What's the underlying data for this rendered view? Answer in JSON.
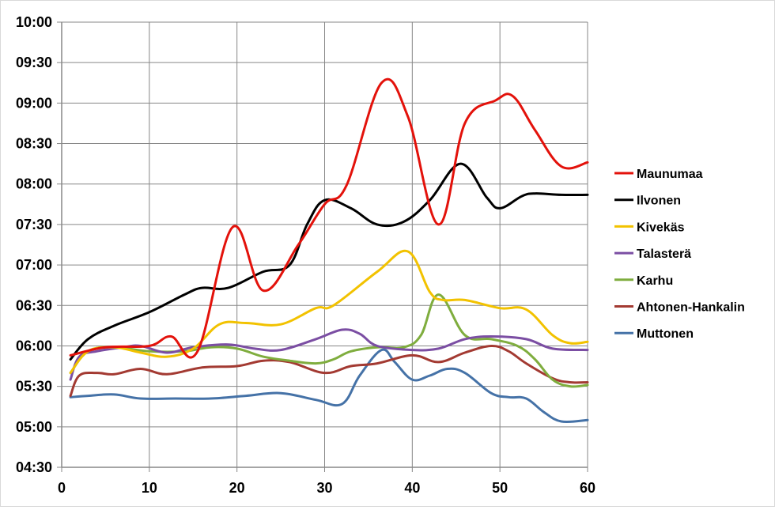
{
  "chart_data": {
    "type": "line",
    "title": "",
    "xlabel": "",
    "ylabel": "",
    "xlim": [
      0,
      60
    ],
    "ylim": [
      "04:30",
      "10:00"
    ],
    "x_ticks": [
      "0",
      "10",
      "20",
      "30",
      "40",
      "50",
      "60"
    ],
    "y_ticks": [
      "10:00",
      "09:30",
      "09:00",
      "08:30",
      "08:00",
      "07:30",
      "07:00",
      "06:30",
      "06:00",
      "05:30",
      "05:00",
      "04:30"
    ],
    "grid": true,
    "legend_position": "right",
    "series": [
      {
        "name": "Maunumaa",
        "color": "#e3120b",
        "points": [
          [
            1,
            "05:53"
          ],
          [
            5,
            "05:59"
          ],
          [
            10,
            "06:00"
          ],
          [
            12.5,
            "06:07"
          ],
          [
            15.5,
            "05:56"
          ],
          [
            19.5,
            "07:28"
          ],
          [
            23,
            "06:41"
          ],
          [
            27,
            "07:15"
          ],
          [
            30,
            "07:45"
          ],
          [
            32.5,
            "07:59"
          ],
          [
            36.5,
            "09:15"
          ],
          [
            39.5,
            "08:50"
          ],
          [
            43,
            "07:30"
          ],
          [
            46,
            "08:45"
          ],
          [
            49.5,
            "09:02"
          ],
          [
            51.5,
            "09:05"
          ],
          [
            54,
            "08:40"
          ],
          [
            57,
            "08:13"
          ],
          [
            60,
            "08:16"
          ]
        ]
      },
      {
        "name": "Ilvonen",
        "color": "#000000",
        "points": [
          [
            1,
            "05:50"
          ],
          [
            3,
            "06:05"
          ],
          [
            6,
            "06:15"
          ],
          [
            10,
            "06:25"
          ],
          [
            14,
            "06:38"
          ],
          [
            16,
            "06:43"
          ],
          [
            19,
            "06:43"
          ],
          [
            23,
            "06:55"
          ],
          [
            26,
            "07:00"
          ],
          [
            28,
            "07:30"
          ],
          [
            30,
            "07:48"
          ],
          [
            33,
            "07:42"
          ],
          [
            36,
            "07:30"
          ],
          [
            39,
            "07:32"
          ],
          [
            42,
            "07:48"
          ],
          [
            45.5,
            "08:15"
          ],
          [
            48.5,
            "07:50"
          ],
          [
            50,
            "07:42"
          ],
          [
            52.5,
            "07:51"
          ],
          [
            54,
            "07:53"
          ],
          [
            57,
            "07:52"
          ],
          [
            60,
            "07:52"
          ]
        ]
      },
      {
        "name": "Kivekäs",
        "color": "#f2c200",
        "points": [
          [
            1,
            "05:40"
          ],
          [
            3,
            "05:56"
          ],
          [
            6,
            "05:59"
          ],
          [
            9,
            "05:55"
          ],
          [
            12,
            "05:52"
          ],
          [
            15,
            "05:58"
          ],
          [
            18,
            "06:16"
          ],
          [
            21,
            "06:17"
          ],
          [
            25,
            "06:16"
          ],
          [
            29,
            "06:28"
          ],
          [
            31,
            "06:30"
          ],
          [
            36,
            "06:55"
          ],
          [
            39.5,
            "07:10"
          ],
          [
            42,
            "06:40"
          ],
          [
            43.5,
            "06:34"
          ],
          [
            46,
            "06:34"
          ],
          [
            50,
            "06:28"
          ],
          [
            53,
            "06:27"
          ],
          [
            56,
            "06:08"
          ],
          [
            58,
            "06:02"
          ],
          [
            60,
            "06:03"
          ]
        ]
      },
      {
        "name": "Talasterä",
        "color": "#7b4ea3",
        "points": [
          [
            1,
            "05:35"
          ],
          [
            2,
            "05:52"
          ],
          [
            4,
            "05:56"
          ],
          [
            7,
            "05:59"
          ],
          [
            9,
            "06:00"
          ],
          [
            12,
            "05:55"
          ],
          [
            15,
            "05:59"
          ],
          [
            19,
            "06:01"
          ],
          [
            22,
            "05:58"
          ],
          [
            25,
            "05:57"
          ],
          [
            29,
            "06:05"
          ],
          [
            32,
            "06:12"
          ],
          [
            34,
            "06:09"
          ],
          [
            36,
            "06:00"
          ],
          [
            40,
            "05:57"
          ],
          [
            43,
            "05:58"
          ],
          [
            46,
            "06:05"
          ],
          [
            49,
            "06:07"
          ],
          [
            53,
            "06:05"
          ],
          [
            56,
            "05:58"
          ],
          [
            60,
            "05:57"
          ]
        ]
      },
      {
        "name": "Karhu",
        "color": "#7fad3e",
        "points": [
          [
            1,
            "05:40"
          ],
          [
            3,
            "05:56"
          ],
          [
            6,
            "05:59"
          ],
          [
            10,
            "05:56"
          ],
          [
            14,
            "05:56"
          ],
          [
            17,
            "05:59"
          ],
          [
            20,
            "05:58"
          ],
          [
            23,
            "05:52"
          ],
          [
            26,
            "05:49"
          ],
          [
            29,
            "05:47"
          ],
          [
            31,
            "05:50"
          ],
          [
            33,
            "05:56"
          ],
          [
            36,
            "05:59"
          ],
          [
            39,
            "05:59"
          ],
          [
            41,
            "06:08"
          ],
          [
            43,
            "06:38"
          ],
          [
            46,
            "06:08"
          ],
          [
            49,
            "06:05"
          ],
          [
            52,
            "06:00"
          ],
          [
            54,
            "05:50"
          ],
          [
            56,
            "05:35"
          ],
          [
            58,
            "05:30"
          ],
          [
            60,
            "05:31"
          ]
        ]
      },
      {
        "name": "Ahtonen-Hankalin",
        "color": "#a33a32",
        "points": [
          [
            1,
            "05:23"
          ],
          [
            2,
            "05:38"
          ],
          [
            4,
            "05:40"
          ],
          [
            6,
            "05:39"
          ],
          [
            9,
            "05:43"
          ],
          [
            12,
            "05:39"
          ],
          [
            16,
            "05:44"
          ],
          [
            20,
            "05:45"
          ],
          [
            23,
            "05:49"
          ],
          [
            26,
            "05:48"
          ],
          [
            30,
            "05:40"
          ],
          [
            33,
            "05:45"
          ],
          [
            36,
            "05:47"
          ],
          [
            40,
            "05:53"
          ],
          [
            43,
            "05:48"
          ],
          [
            46,
            "05:55"
          ],
          [
            49,
            "06:00"
          ],
          [
            51,
            "05:56"
          ],
          [
            53,
            "05:47"
          ],
          [
            56,
            "05:36"
          ],
          [
            58,
            "05:33"
          ],
          [
            60,
            "05:33"
          ]
        ]
      },
      {
        "name": "Muttonen",
        "color": "#4572a7",
        "points": [
          [
            1,
            "05:22"
          ],
          [
            3,
            "05:23"
          ],
          [
            6,
            "05:24"
          ],
          [
            9,
            "05:21"
          ],
          [
            13,
            "05:21"
          ],
          [
            17,
            "05:21"
          ],
          [
            21,
            "05:23"
          ],
          [
            25,
            "05:25"
          ],
          [
            29,
            "05:20"
          ],
          [
            32,
            "05:17"
          ],
          [
            34,
            "05:38"
          ],
          [
            36.5,
            "05:57"
          ],
          [
            38,
            "05:48"
          ],
          [
            40,
            "05:35"
          ],
          [
            42,
            "05:38"
          ],
          [
            44,
            "05:43"
          ],
          [
            46,
            "05:40"
          ],
          [
            49,
            "05:25"
          ],
          [
            51,
            "05:22"
          ],
          [
            53,
            "05:21"
          ],
          [
            55,
            "05:11"
          ],
          [
            57,
            "05:04"
          ],
          [
            60,
            "05:05"
          ]
        ]
      }
    ]
  }
}
